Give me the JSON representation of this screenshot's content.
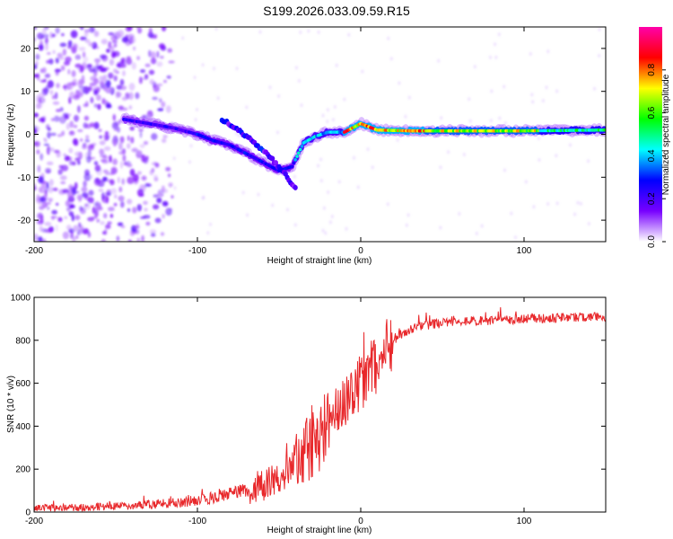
{
  "title": "S199.2026.033.09.59.R15",
  "chart_data": [
    {
      "type": "heatmap",
      "panel": "spectrogram",
      "xlabel": "Height of straight line (km)",
      "ylabel": "Frequency (Hz)",
      "xlim": [
        -200,
        150
      ],
      "ylim": [
        -25,
        25
      ],
      "xticks": [
        -200,
        -100,
        0,
        100
      ],
      "yticks": [
        -20,
        -10,
        0,
        10,
        20
      ],
      "colorbar": {
        "label": "Normalized spectral amplitude",
        "range": [
          0,
          1
        ],
        "ticks": [
          "0.0",
          "0.2",
          "0.4",
          "0.6",
          "0.8"
        ],
        "stops": [
          "#ffffff",
          "#7700ff",
          "#0000ff",
          "#00ffff",
          "#00ff00",
          "#ffff00",
          "#ff0000",
          "#ff00aa"
        ]
      },
      "ridge": {
        "description": "dominant frequency ridge vs height",
        "x": [
          -145,
          -130,
          -115,
          -100,
          -90,
          -80,
          -70,
          -60,
          -50,
          -42,
          -35,
          -28,
          -20,
          -10,
          0,
          10,
          30,
          60,
          100,
          150
        ],
        "y": [
          3.5,
          2.5,
          1.5,
          0.0,
          -1.5,
          -2.5,
          -4.5,
          -6.5,
          -8.5,
          -7.5,
          -2.0,
          -0.5,
          0.5,
          0.5,
          2.5,
          1.0,
          0.8,
          0.8,
          0.8,
          1.0
        ]
      },
      "secondary_ridge": {
        "x": [
          -85,
          -75,
          -65,
          -55,
          -45,
          -40
        ],
        "y": [
          3.5,
          1.0,
          -2.0,
          -5.5,
          -10.0,
          -12.5
        ]
      },
      "noise_region": {
        "x": [
          -200,
          -115
        ],
        "y": [
          -25,
          25
        ]
      }
    },
    {
      "type": "line",
      "panel": "snr",
      "xlabel": "Height of straight line (km)",
      "ylabel": "SNR (10 * v/v)",
      "xlim": [
        -200,
        150
      ],
      "ylim": [
        0,
        1000
      ],
      "xticks": [
        -200,
        -100,
        0,
        100
      ],
      "yticks": [
        0,
        200,
        400,
        600,
        800,
        1000
      ],
      "color": "#e8282b",
      "series": [
        {
          "name": "SNR",
          "x": [
            -200,
            -180,
            -160,
            -140,
            -120,
            -110,
            -100,
            -90,
            -80,
            -70,
            -60,
            -50,
            -45,
            -40,
            -35,
            -30,
            -25,
            -20,
            -15,
            -10,
            -5,
            0,
            5,
            10,
            15,
            20,
            25,
            30,
            40,
            50,
            60,
            80,
            100,
            120,
            150
          ],
          "values": [
            20,
            20,
            25,
            30,
            40,
            45,
            55,
            70,
            90,
            95,
            120,
            160,
            200,
            240,
            270,
            320,
            360,
            400,
            470,
            520,
            560,
            600,
            650,
            700,
            760,
            800,
            830,
            850,
            870,
            880,
            890,
            890,
            900,
            905,
            910
          ]
        }
      ]
    }
  ]
}
